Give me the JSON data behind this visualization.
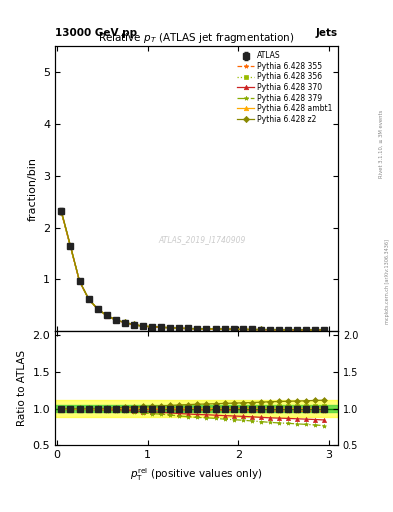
{
  "title": "Relative $p_{T}$ (ATLAS jet fragmentation)",
  "header_left": "13000 GeV pp",
  "header_right": "Jets",
  "ylabel_main": "fraction/bin",
  "ylabel_ratio": "Ratio to ATLAS",
  "xlabel": "$p_{\\mathrm{T}}^{\\mathrm{rel}}$ (positive values only)",
  "watermark": "ATLAS_2019_I1740909",
  "right_label": "mcplots.cern.ch [arXiv:1306.3436]",
  "rivet_label": "Rivet 3.1.10, ≥ 3M events",
  "ylim_main": [
    0,
    5.5
  ],
  "ylim_ratio": [
    0.5,
    2.05
  ],
  "xlim": [
    -0.02,
    3.1
  ],
  "x_ticks": [
    0,
    1,
    2,
    3
  ],
  "y_ticks_main": [
    1,
    2,
    3,
    4,
    5
  ],
  "y_ticks_ratio": [
    0.5,
    1.0,
    1.5,
    2.0
  ],
  "atlas_data": {
    "x": [
      0.05,
      0.15,
      0.25,
      0.35,
      0.45,
      0.55,
      0.65,
      0.75,
      0.85,
      0.95,
      1.05,
      1.15,
      1.25,
      1.35,
      1.45,
      1.55,
      1.65,
      1.75,
      1.85,
      1.95,
      2.05,
      2.15,
      2.25,
      2.35,
      2.45,
      2.55,
      2.65,
      2.75,
      2.85,
      2.95
    ],
    "y": [
      2.32,
      1.65,
      0.97,
      0.63,
      0.43,
      0.31,
      0.22,
      0.17,
      0.13,
      0.1,
      0.09,
      0.08,
      0.07,
      0.06,
      0.055,
      0.05,
      0.048,
      0.045,
      0.042,
      0.04,
      0.038,
      0.036,
      0.034,
      0.032,
      0.031,
      0.03,
      0.029,
      0.028,
      0.027,
      0.026
    ],
    "yerr": [
      0.06,
      0.04,
      0.02,
      0.012,
      0.009,
      0.007,
      0.005,
      0.004,
      0.003,
      0.003,
      0.002,
      0.002,
      0.002,
      0.002,
      0.002,
      0.002,
      0.002,
      0.002,
      0.001,
      0.001,
      0.001,
      0.001,
      0.001,
      0.001,
      0.001,
      0.001,
      0.001,
      0.001,
      0.001,
      0.001
    ],
    "color": "#222222",
    "marker": "s",
    "label": "ATLAS"
  },
  "mc_series": [
    {
      "label": "Pythia 6.428 355",
      "color": "#ff6600",
      "linestyle": "--",
      "marker": "*",
      "y": [
        2.3,
        1.64,
        0.965,
        0.627,
        0.427,
        0.308,
        0.219,
        0.169,
        0.129,
        0.099,
        0.089,
        0.079,
        0.069,
        0.059,
        0.054,
        0.049,
        0.047,
        0.044,
        0.041,
        0.039,
        0.037,
        0.035,
        0.033,
        0.031,
        0.03,
        0.029,
        0.028,
        0.027,
        0.026,
        0.025
      ],
      "ratio": [
        0.99,
        0.994,
        0.995,
        0.995,
        0.993,
        0.994,
        0.995,
        0.994,
        0.992,
        0.99,
        0.989,
        0.9875,
        0.986,
        0.983,
        0.982,
        0.98,
        0.979,
        0.978,
        0.976,
        0.975,
        0.974,
        0.972,
        0.971,
        0.969,
        0.968,
        0.967,
        0.966,
        0.964,
        0.963,
        0.962
      ]
    },
    {
      "label": "Pythia 6.428 356",
      "color": "#99bb00",
      "linestyle": ":",
      "marker": "s",
      "y": [
        2.31,
        1.645,
        0.968,
        0.629,
        0.429,
        0.309,
        0.221,
        0.171,
        0.131,
        0.101,
        0.091,
        0.081,
        0.071,
        0.061,
        0.056,
        0.051,
        0.049,
        0.046,
        0.043,
        0.041,
        0.039,
        0.037,
        0.035,
        0.033,
        0.032,
        0.031,
        0.03,
        0.029,
        0.028,
        0.027
      ],
      "ratio": [
        0.996,
        0.997,
        0.998,
        0.998,
        0.998,
        0.997,
        1.005,
        1.006,
        1.008,
        1.01,
        1.011,
        1.013,
        1.014,
        1.017,
        1.018,
        1.02,
        1.021,
        1.022,
        1.024,
        1.025,
        1.026,
        1.028,
        1.029,
        1.031,
        1.032,
        1.033,
        1.034,
        1.036,
        1.037,
        1.038
      ]
    },
    {
      "label": "Pythia 6.428 370",
      "color": "#cc2222",
      "linestyle": "-",
      "marker": "^",
      "y": [
        2.3,
        1.638,
        0.963,
        0.624,
        0.424,
        0.304,
        0.216,
        0.166,
        0.126,
        0.096,
        0.086,
        0.076,
        0.066,
        0.056,
        0.051,
        0.046,
        0.044,
        0.041,
        0.038,
        0.036,
        0.034,
        0.032,
        0.03,
        0.028,
        0.027,
        0.026,
        0.025,
        0.024,
        0.023,
        0.022
      ],
      "ratio": [
        0.991,
        0.993,
        0.992,
        0.99,
        0.986,
        0.981,
        0.982,
        0.976,
        0.969,
        0.96,
        0.956,
        0.95,
        0.943,
        0.933,
        0.927,
        0.92,
        0.917,
        0.911,
        0.905,
        0.9,
        0.895,
        0.889,
        0.882,
        0.875,
        0.871,
        0.867,
        0.862,
        0.857,
        0.852,
        0.846
      ]
    },
    {
      "label": "Pythia 6.428 379",
      "color": "#88aa00",
      "linestyle": "-.",
      "marker": "*",
      "y": [
        2.29,
        1.632,
        0.96,
        0.622,
        0.422,
        0.302,
        0.214,
        0.164,
        0.124,
        0.094,
        0.084,
        0.074,
        0.064,
        0.054,
        0.049,
        0.044,
        0.042,
        0.039,
        0.036,
        0.034,
        0.032,
        0.03,
        0.028,
        0.026,
        0.025,
        0.024,
        0.023,
        0.022,
        0.021,
        0.02
      ],
      "ratio": [
        0.987,
        0.989,
        0.989,
        0.988,
        0.981,
        0.974,
        0.973,
        0.965,
        0.954,
        0.94,
        0.933,
        0.925,
        0.914,
        0.9,
        0.891,
        0.88,
        0.875,
        0.867,
        0.857,
        0.85,
        0.842,
        0.833,
        0.824,
        0.813,
        0.806,
        0.8,
        0.793,
        0.786,
        0.778,
        0.769
      ]
    },
    {
      "label": "Pythia 6.428 ambt1",
      "color": "#ffaa00",
      "linestyle": "-",
      "marker": "^",
      "y": [
        2.31,
        1.645,
        0.968,
        0.628,
        0.428,
        0.308,
        0.22,
        0.17,
        0.13,
        0.1,
        0.09,
        0.08,
        0.07,
        0.06,
        0.055,
        0.05,
        0.048,
        0.045,
        0.042,
        0.04,
        0.038,
        0.036,
        0.034,
        0.032,
        0.031,
        0.03,
        0.029,
        0.028,
        0.027,
        0.026
      ],
      "ratio": [
        0.996,
        0.997,
        0.998,
        0.997,
        0.995,
        0.994,
        1.0,
        1.0,
        1.0,
        1.0,
        1.0,
        1.0,
        1.0,
        1.0,
        1.0,
        1.0,
        1.0,
        1.0,
        1.0,
        1.0,
        1.0,
        1.0,
        1.0,
        1.0,
        1.0,
        1.0,
        1.0,
        1.0,
        1.0,
        1.0
      ]
    },
    {
      "label": "Pythia 6.428 z2",
      "color": "#888800",
      "linestyle": "-",
      "marker": "D",
      "y": [
        2.32,
        1.652,
        0.972,
        0.631,
        0.431,
        0.311,
        0.223,
        0.173,
        0.133,
        0.103,
        0.093,
        0.083,
        0.073,
        0.063,
        0.058,
        0.053,
        0.051,
        0.048,
        0.045,
        0.043,
        0.041,
        0.039,
        0.037,
        0.035,
        0.034,
        0.033,
        0.032,
        0.031,
        0.03,
        0.029
      ],
      "ratio": [
        1.0,
        1.001,
        1.002,
        1.002,
        1.002,
        1.003,
        1.014,
        1.018,
        1.023,
        1.03,
        1.033,
        1.038,
        1.043,
        1.05,
        1.055,
        1.06,
        1.063,
        1.067,
        1.071,
        1.075,
        1.079,
        1.083,
        1.088,
        1.094,
        1.097,
        1.1,
        1.103,
        1.107,
        1.111,
        1.115
      ]
    }
  ],
  "atlas_band_yellow": 0.12,
  "atlas_band_green": 0.05
}
